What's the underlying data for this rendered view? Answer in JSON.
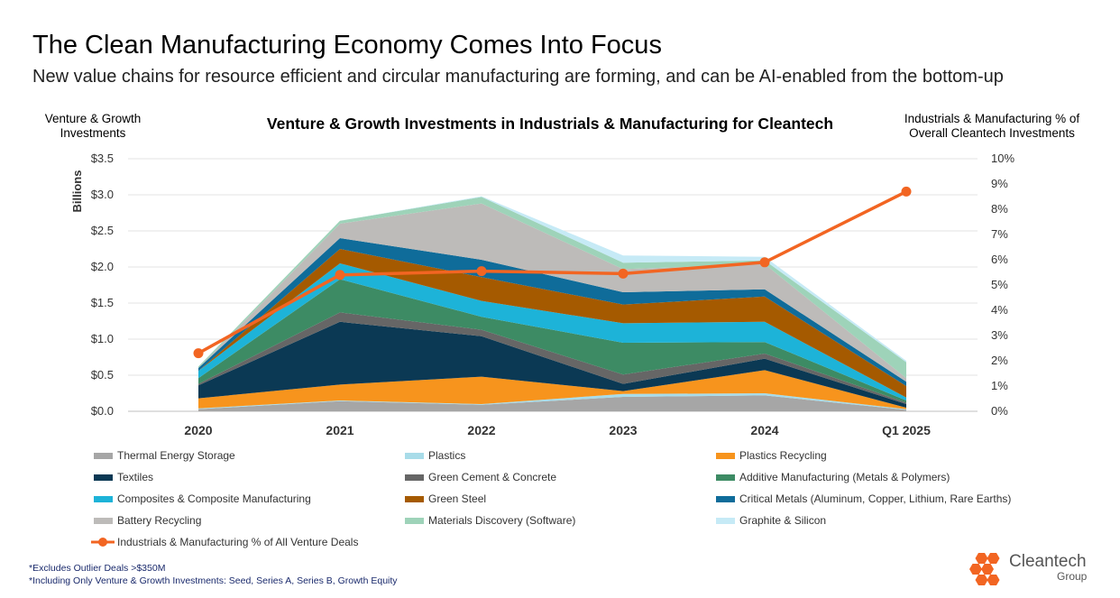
{
  "header": {
    "title": "The Clean Manufacturing Economy Comes Into Focus",
    "subtitle": "New value chains for resource efficient and circular manufacturing are forming, and can be AI-enabled from the bottom-up"
  },
  "chart_data": {
    "type": "area",
    "title": "Venture & Growth Investments in Industrials & Manufacturing for Cleantech",
    "left_axis_header": "Venture & Growth Investments",
    "right_axis_header": "Industrials & Manufacturing % of Overall Cleantech Investments",
    "ylabel": "Billions",
    "categories": [
      "2020",
      "2021",
      "2022",
      "2023",
      "2024",
      "Q1 2025"
    ],
    "ylim": [
      0,
      3.5
    ],
    "y_ticks": [
      "$0.0",
      "$0.5",
      "$1.0",
      "$1.5",
      "$2.0",
      "$2.5",
      "$3.0",
      "$3.5"
    ],
    "y2lim": [
      0,
      10
    ],
    "y2_ticks": [
      "0%",
      "1%",
      "2%",
      "3%",
      "4%",
      "5%",
      "6%",
      "7%",
      "8%",
      "9%",
      "10%"
    ],
    "series": [
      {
        "name": "Thermal Energy Storage",
        "color": "#a6a6a6",
        "values": [
          0.03,
          0.14,
          0.09,
          0.2,
          0.22,
          0.02
        ]
      },
      {
        "name": "Plastics",
        "color": "#a8dce9",
        "values": [
          0.01,
          0.01,
          0.01,
          0.04,
          0.03,
          0.01
        ]
      },
      {
        "name": "Plastics Recycling",
        "color": "#f7941d",
        "values": [
          0.14,
          0.22,
          0.38,
          0.04,
          0.32,
          0.02
        ]
      },
      {
        "name": "Textiles",
        "color": "#0b3954",
        "values": [
          0.18,
          0.87,
          0.56,
          0.1,
          0.16,
          0.05
        ]
      },
      {
        "name": "Green Cement & Concrete",
        "color": "#666666",
        "values": [
          0.02,
          0.13,
          0.09,
          0.13,
          0.07,
          0.02
        ]
      },
      {
        "name": "Additive Manufacturing (Metals & Polymers)",
        "color": "#3d8b64",
        "values": [
          0.08,
          0.46,
          0.18,
          0.44,
          0.16,
          0.03
        ]
      },
      {
        "name": "Composites & Composite Manufacturing",
        "color": "#1db3d8",
        "values": [
          0.1,
          0.22,
          0.22,
          0.27,
          0.28,
          0.04
        ]
      },
      {
        "name": "Green Steel",
        "color": "#a55a00",
        "values": [
          0.0,
          0.2,
          0.33,
          0.26,
          0.35,
          0.16
        ]
      },
      {
        "name": "Critical Metals (Aluminum, Copper, Lithium, Rare Earths)",
        "color": "#0f6c9a",
        "values": [
          0.04,
          0.15,
          0.24,
          0.17,
          0.1,
          0.06
        ]
      },
      {
        "name": "Battery Recycling",
        "color": "#bdbbb9",
        "values": [
          0.0,
          0.2,
          0.78,
          0.32,
          0.35,
          0.05
        ]
      },
      {
        "name": "Materials Discovery (Software)",
        "color": "#9ed3b9",
        "values": [
          0.02,
          0.04,
          0.09,
          0.09,
          0.05,
          0.22
        ]
      },
      {
        "name": "Graphite & Silicon",
        "color": "#c6eaf6",
        "values": [
          0.0,
          0.0,
          0.01,
          0.1,
          0.05,
          0.02
        ]
      }
    ],
    "line_series": {
      "name": "Industrials & Manufacturing % of All Venture Deals",
      "color": "#f26522",
      "values": [
        2.3,
        5.4,
        5.55,
        5.45,
        5.9,
        8.7
      ]
    },
    "grid": true,
    "legend": "bottom"
  },
  "footnotes": [
    "*Excludes Outlier Deals >$350M",
    "*Including Only Venture & Growth Investments: Seed, Series A, Series B, Growth Equity"
  ],
  "logo": {
    "line1": "Cleantech",
    "line2": "Group",
    "color": "#f26522"
  }
}
